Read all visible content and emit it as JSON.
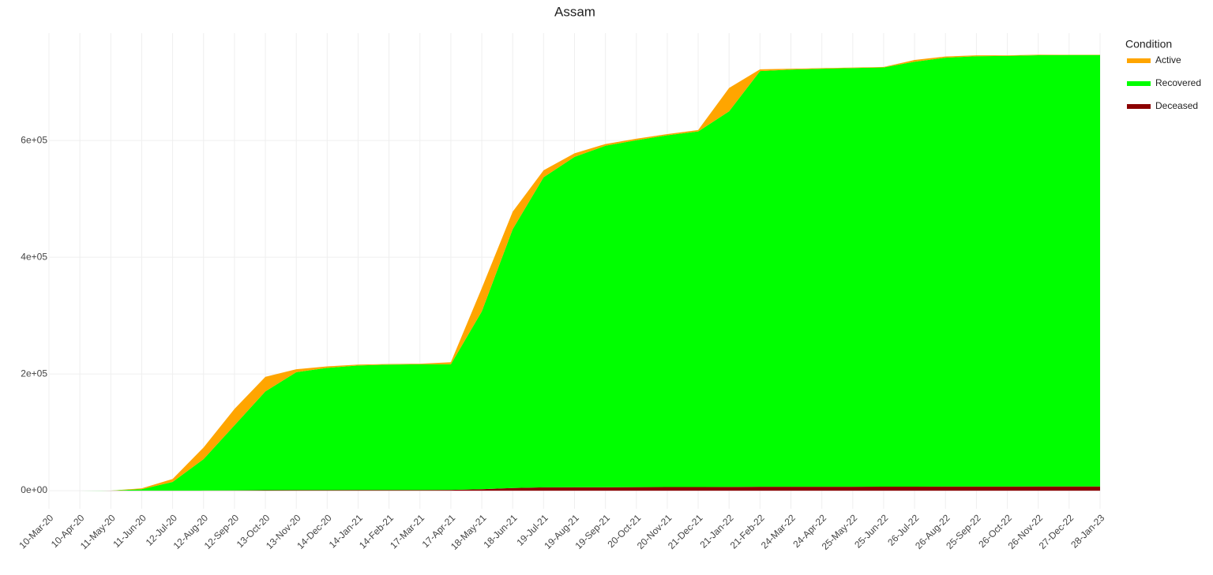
{
  "chart_data": {
    "type": "stacked-area",
    "title": "Assam",
    "categories": [
      "10-Mar-20",
      "10-Apr-20",
      "11-May-20",
      "11-Jun-20",
      "12-Jul-20",
      "12-Aug-20",
      "12-Sep-20",
      "13-Oct-20",
      "13-Nov-20",
      "14-Dec-20",
      "14-Jan-21",
      "14-Feb-21",
      "17-Mar-21",
      "17-Apr-21",
      "18-May-21",
      "18-Jun-21",
      "19-Jul-21",
      "19-Aug-21",
      "19-Sep-21",
      "20-Oct-21",
      "20-Nov-21",
      "21-Dec-21",
      "21-Jan-22",
      "21-Feb-22",
      "24-Mar-22",
      "24-Apr-22",
      "25-May-22",
      "25-Jun-22",
      "26-Jul-22",
      "26-Aug-22",
      "25-Sep-22",
      "26-Oct-22",
      "26-Nov-22",
      "27-Dec-22",
      "28-Jan-23"
    ],
    "legend_title": "Condition",
    "series": [
      {
        "name": "Active",
        "color": "#ffa500",
        "values": [
          0,
          0,
          50,
          1500,
          5000,
          20000,
          28000,
          25000,
          5000,
          2500,
          1500,
          1000,
          1000,
          3500,
          40000,
          30000,
          12000,
          6000,
          3000,
          2500,
          2000,
          2500,
          40000,
          3000,
          1500,
          1000,
          800,
          800,
          3000,
          2000,
          1500,
          1000,
          800,
          500,
          500
        ]
      },
      {
        "name": "Recovered",
        "color": "#00ff00",
        "values": [
          0,
          0,
          48,
          2492,
          14955,
          53820,
          111500,
          169200,
          202050,
          209500,
          213450,
          214920,
          215400,
          215300,
          304500,
          443500,
          531400,
          566200,
          585100,
          594500,
          602900,
          609300,
          643600,
          712400,
          714850,
          716300,
          717450,
          718400,
          728100,
          735050,
          737500,
          737950,
          739100,
          739350,
          739400
        ]
      },
      {
        "name": "Deceased",
        "color": "#8b0000",
        "values": [
          0,
          0,
          2,
          8,
          45,
          180,
          500,
          800,
          950,
          1000,
          1050,
          1080,
          1100,
          1200,
          2500,
          4500,
          5600,
          5800,
          5900,
          6000,
          6100,
          6200,
          6400,
          6600,
          6650,
          6700,
          6750,
          6800,
          6900,
          6950,
          7000,
          7050,
          7100,
          7150,
          7150
        ]
      }
    ],
    "ylim": [
      -31000,
      784000
    ],
    "yticks": [
      {
        "value": 0,
        "label": "0e+00"
      },
      {
        "value": 200000,
        "label": "2e+05"
      },
      {
        "value": 400000,
        "label": "4e+05"
      },
      {
        "value": 600000,
        "label": "6e+05"
      }
    ],
    "grid": true
  }
}
